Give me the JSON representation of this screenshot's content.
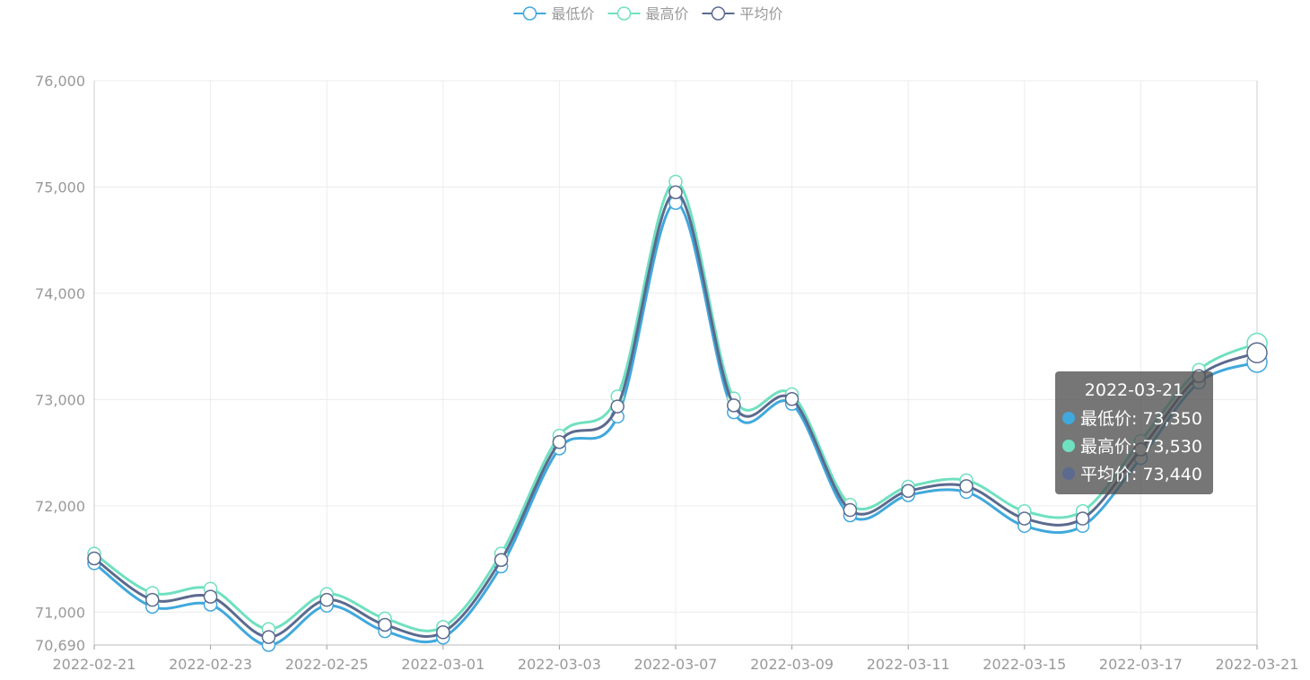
{
  "chart_data": {
    "type": "line",
    "categories": [
      "2022-02-21",
      null,
      "2022-02-23",
      null,
      "2022-02-25",
      null,
      "2022-03-01",
      null,
      "2022-03-03",
      null,
      "2022-03-07",
      null,
      "2022-03-09",
      null,
      "2022-03-11",
      null,
      "2022-03-15",
      null,
      "2022-03-17",
      null,
      "2022-03-21"
    ],
    "series": [
      {
        "name": "最低价",
        "color": "#40a8dc",
        "values": [
          71460,
          71050,
          71070,
          70690,
          71060,
          70820,
          70760,
          71430,
          72540,
          72840,
          74850,
          72880,
          72960,
          71910,
          72100,
          72130,
          71810,
          71810,
          72450,
          73160,
          73350
        ]
      },
      {
        "name": "最高价",
        "color": "#6fe0c0",
        "values": [
          71550,
          71180,
          71220,
          70840,
          71170,
          70940,
          70860,
          71550,
          72660,
          73030,
          75050,
          73010,
          73050,
          72010,
          72180,
          72240,
          71950,
          71950,
          72610,
          73280,
          73530
        ]
      },
      {
        "name": "平均价",
        "color": "#5b6a8e",
        "values": [
          71505,
          71115,
          71145,
          70765,
          71115,
          70880,
          70810,
          71490,
          72600,
          72935,
          74950,
          72945,
          73005,
          71960,
          72140,
          72185,
          71880,
          71880,
          72530,
          73220,
          73440
        ]
      }
    ],
    "ylim": [
      70690,
      76000
    ],
    "yticks": [
      {
        "value": 70690,
        "label": "70,690"
      },
      {
        "value": 71000,
        "label": "71,000"
      },
      {
        "value": 72000,
        "label": "72,000"
      },
      {
        "value": 73000,
        "label": "73,000"
      },
      {
        "value": 74000,
        "label": "74,000"
      },
      {
        "value": 75000,
        "label": "75,000"
      },
      {
        "value": 76000,
        "label": "76,000"
      }
    ],
    "grid": true,
    "smooth": true,
    "legend": "top",
    "tooltip": {
      "title": "2022-03-21",
      "entries": [
        "最低价: 73,350",
        "最高价: 73,530",
        "平均价: 73,440"
      ]
    }
  }
}
